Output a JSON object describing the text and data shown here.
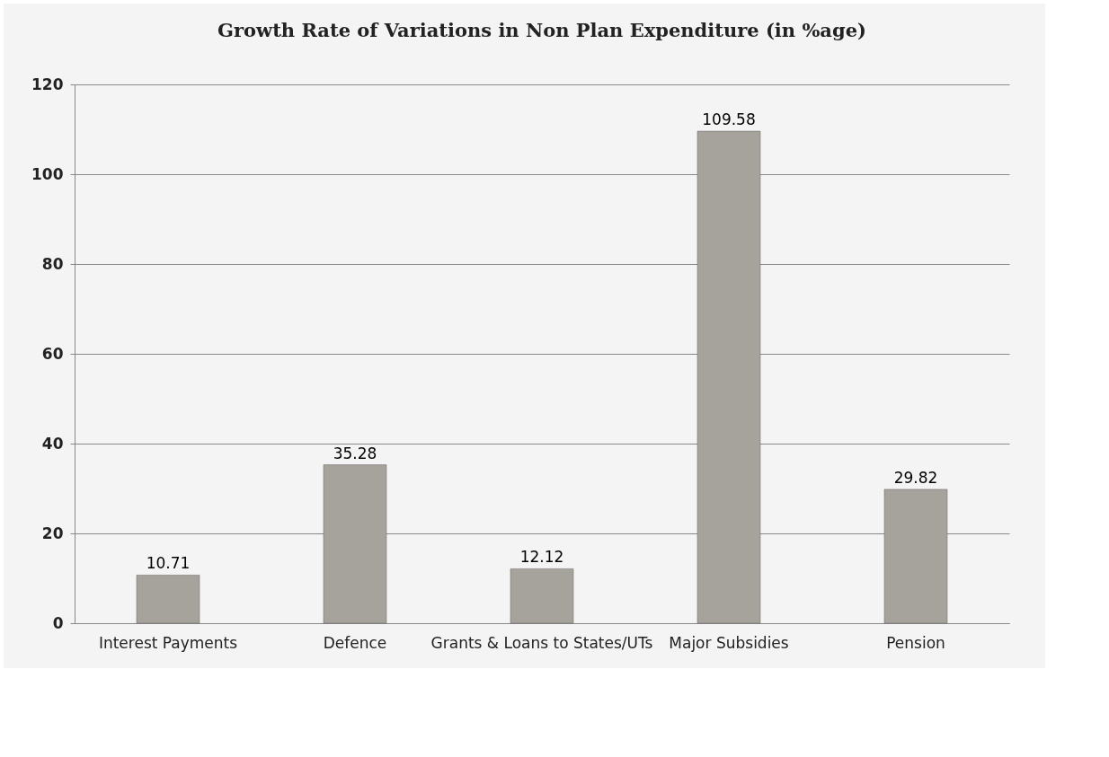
{
  "chart_data": {
    "type": "bar",
    "title": "Growth Rate  of Variations in Non Plan Expenditure (in %age)",
    "categories": [
      "Interest Payments",
      "Defence",
      "Grants & Loans to States/UTs",
      "Major Subsidies",
      "Pension"
    ],
    "values": [
      10.71,
      35.28,
      12.12,
      109.58,
      29.82
    ],
    "color": "#a6a29c",
    "ylim": [
      0,
      120
    ],
    "yticks": [
      0,
      20,
      40,
      60,
      80,
      100,
      120
    ],
    "grid": "y",
    "data_labels": true
  }
}
